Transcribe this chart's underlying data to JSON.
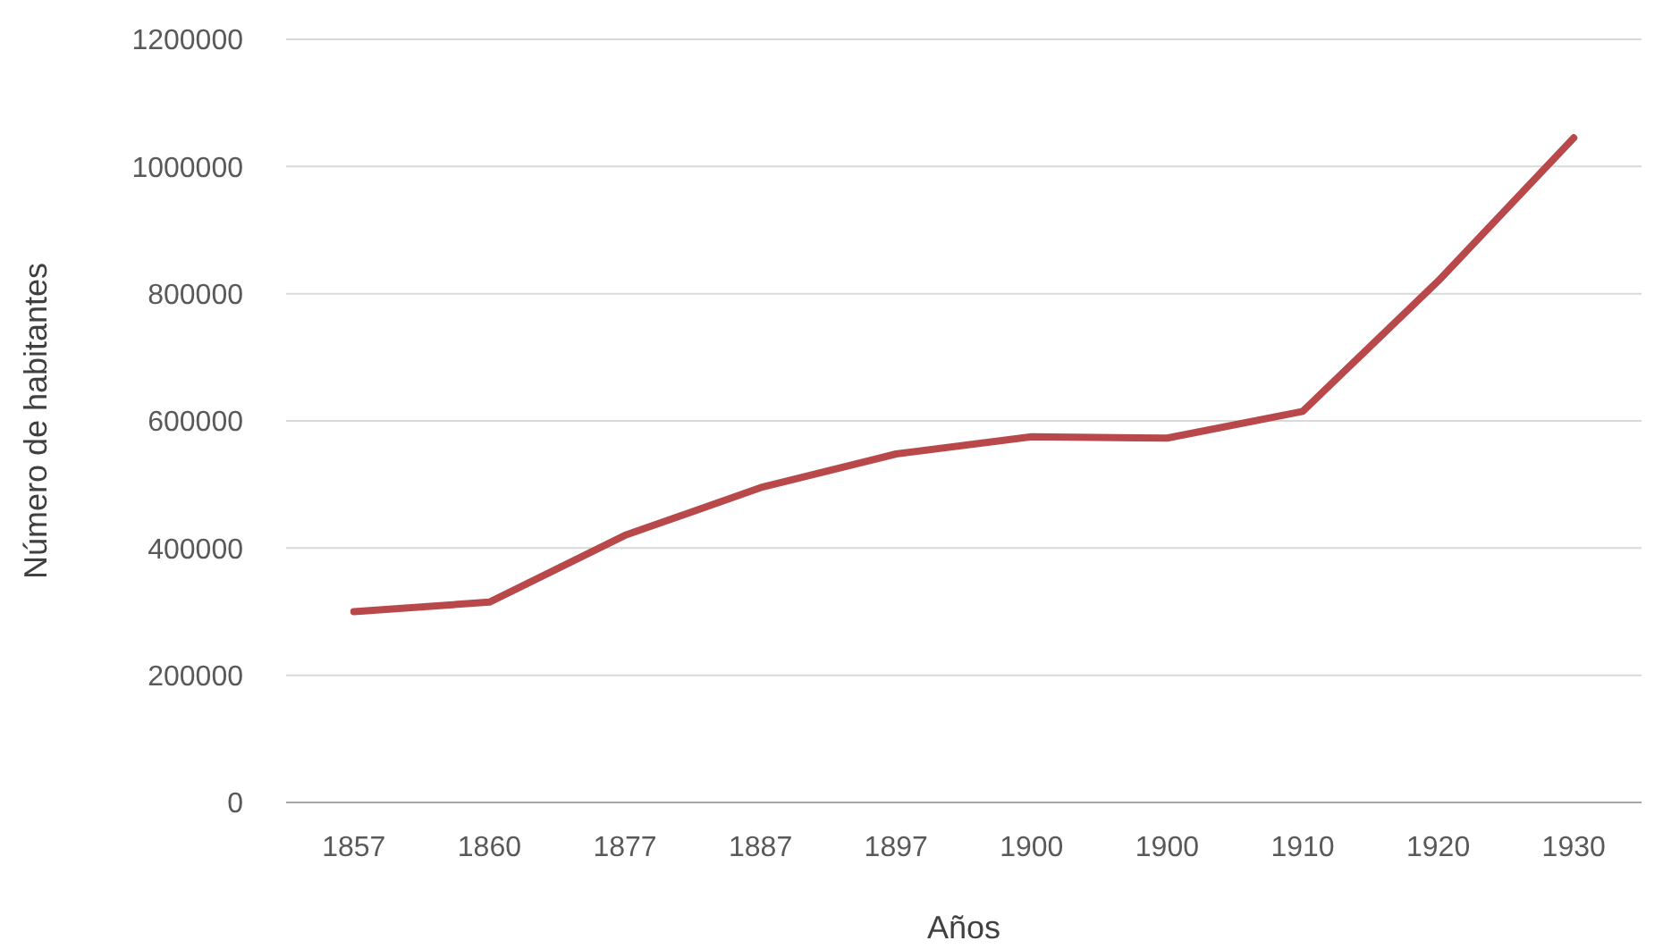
{
  "chart_data": {
    "type": "line",
    "xlabel": "Años",
    "ylabel": "Número de habitantes",
    "categories": [
      "1857",
      "1860",
      "1877",
      "1887",
      "1897",
      "1900",
      "1900",
      "1910",
      "1920",
      "1930"
    ],
    "series": [
      {
        "color": "#b9484b",
        "values": [
          300000,
          315000,
          420000,
          495000,
          548000,
          575000,
          573000,
          615000,
          820000,
          1045000
        ]
      }
    ],
    "ylim": [
      0,
      1200000
    ],
    "yticks": [
      0,
      200000,
      400000,
      600000,
      800000,
      1000000,
      1200000
    ],
    "grid": "y",
    "marker": "none",
    "line_style": "solid"
  }
}
